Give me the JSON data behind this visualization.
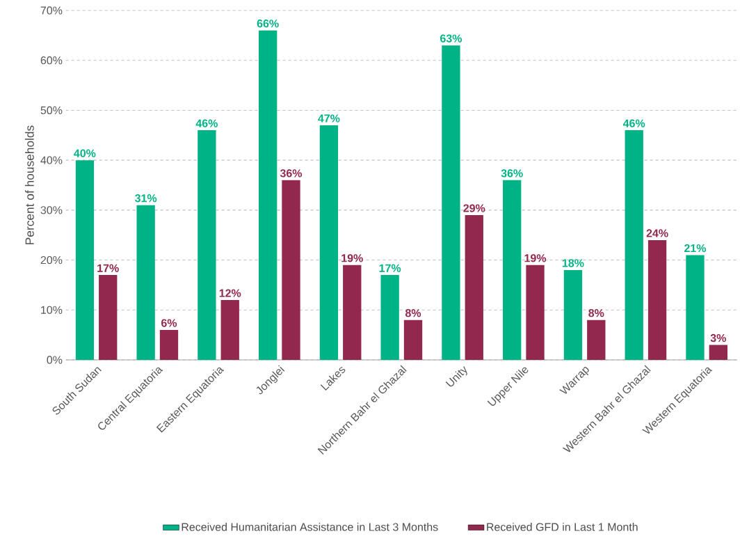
{
  "chart_data": {
    "type": "bar",
    "ylabel": "Percent of households",
    "categories": [
      "South Sudan",
      "Central Equatoria",
      "Eastern Equatoria",
      "Jonglei",
      "Lakes",
      "Northern Bahr el Ghazal",
      "Unity",
      "Upper Nile",
      "Warrap",
      "Western Bahr el Ghazal",
      "Western Equatoria"
    ],
    "series": [
      {
        "name": "Received Humanitarian Assistance in Last 3 Months",
        "color": "#00b386",
        "values": [
          40,
          31,
          46,
          66,
          47,
          17,
          63,
          36,
          18,
          46,
          21
        ],
        "value_labels": [
          "40%",
          "31%",
          "46%",
          "66%",
          "47%",
          "17%",
          "63%",
          "36%",
          "18%",
          "46%",
          "21%"
        ]
      },
      {
        "name": "Received GFD in Last 1 Month",
        "color": "#93284f",
        "values": [
          17,
          6,
          12,
          36,
          19,
          8,
          29,
          19,
          8,
          24,
          3
        ],
        "value_labels": [
          "17%",
          "6%",
          "12%",
          "36%",
          "19%",
          "8%",
          "29%",
          "19%",
          "8%",
          "24%",
          "3%"
        ]
      }
    ],
    "ylim": [
      0,
      70
    ],
    "yticks": [
      {
        "value": 0,
        "label": "0%"
      },
      {
        "value": 10,
        "label": "10%"
      },
      {
        "value": 20,
        "label": "20%"
      },
      {
        "value": 30,
        "label": "30%"
      },
      {
        "value": 40,
        "label": "40%"
      },
      {
        "value": 50,
        "label": "50%"
      },
      {
        "value": 60,
        "label": "60%"
      },
      {
        "value": 70,
        "label": "70%"
      }
    ],
    "grid": "y",
    "legend": "bottom"
  }
}
